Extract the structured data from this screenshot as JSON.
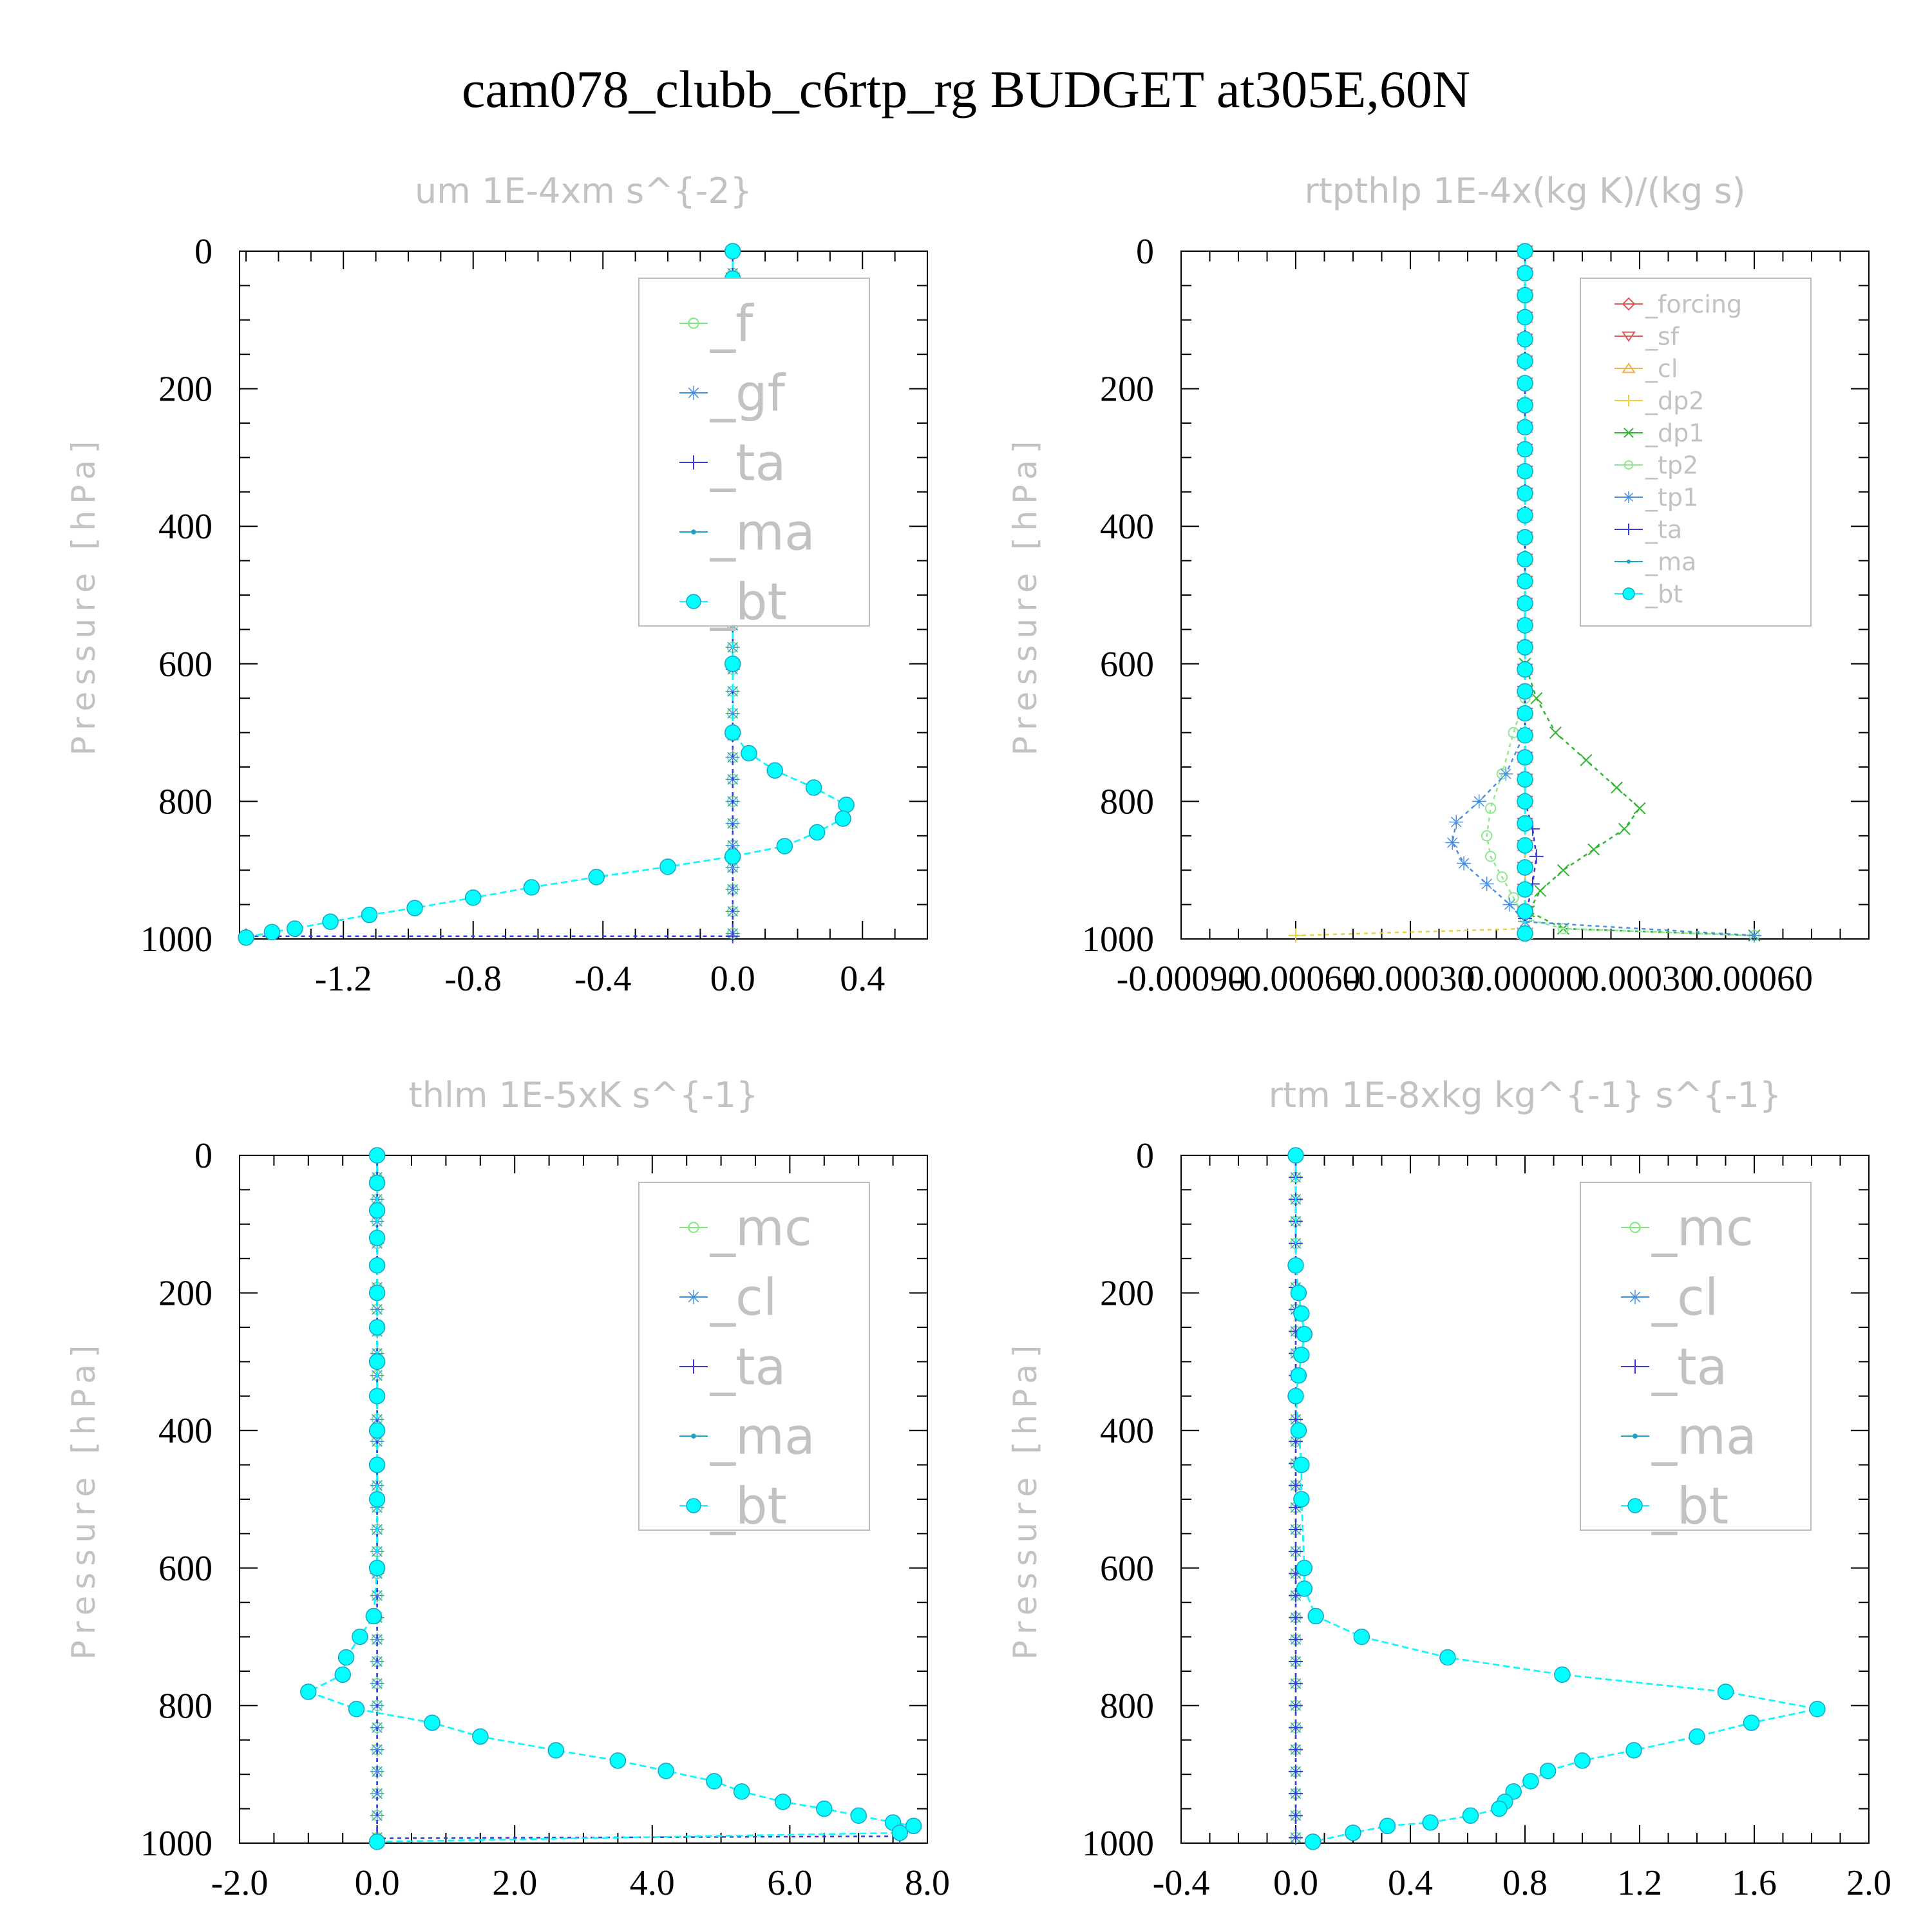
{
  "title": "cam078_clubb_c6rtp_rg  BUDGET at305E,60N",
  "chart_data": [
    {
      "type": "line",
      "title": "um  1E-4xm s^{-2}",
      "ylabel": "Pressure [hPa]",
      "ylim": [
        1000,
        0
      ],
      "xlim": [
        -1.52,
        0.6
      ],
      "xticks": [
        -1.2,
        -0.8,
        -0.4,
        0.0,
        0.4
      ],
      "xtick_labels": [
        "-1.2",
        "-0.8",
        "-0.4",
        "0.0",
        "0.4"
      ],
      "yticks": [
        0,
        200,
        400,
        600,
        800,
        1000
      ],
      "ytick_labels": [
        "0",
        "200",
        "400",
        "600",
        "800",
        "1000"
      ],
      "legend_position": "top-right",
      "legend_size": "large",
      "series": [
        {
          "name": "_f",
          "color": "#7fe77f",
          "marker": "circle-open",
          "x": [
            0,
            0
          ],
          "y": [
            0,
            1000
          ]
        },
        {
          "name": "_gf",
          "color": "#3f8fdf",
          "marker": "star",
          "x": [
            0,
            0
          ],
          "y": [
            0,
            1000
          ]
        },
        {
          "name": "_ta",
          "color": "#3a3ad6",
          "marker": "plus",
          "x": [
            0,
            0,
            -1.5
          ],
          "y": [
            0,
            996,
            996
          ]
        },
        {
          "name": "_ma",
          "color": "#1aa3c6",
          "marker": "dot",
          "x": [
            0,
            0,
            0,
            0,
            0,
            0,
            0,
            0,
            0,
            0,
            0,
            0,
            0,
            0,
            0.05,
            0.13,
            0.25,
            0.35,
            0.34,
            0.26,
            0.16,
            0.0,
            -0.2,
            -0.42,
            -0.62,
            -0.8,
            -0.98,
            -1.12,
            -1.24,
            -1.35,
            -1.42,
            -1.5
          ],
          "y": [
            0,
            40,
            80,
            120,
            160,
            200,
            250,
            300,
            350,
            400,
            450,
            500,
            600,
            700,
            730,
            755,
            780,
            805,
            825,
            845,
            865,
            880,
            895,
            910,
            925,
            940,
            955,
            965,
            975,
            985,
            990,
            998
          ]
        },
        {
          "name": "_bt",
          "color": "#00ffff",
          "marker": "dot-filled",
          "x": [
            0,
            0,
            0,
            0,
            0,
            0,
            0,
            0,
            0,
            0,
            0,
            0,
            0,
            0,
            0.05,
            0.13,
            0.25,
            0.35,
            0.34,
            0.26,
            0.16,
            0.0,
            -0.2,
            -0.42,
            -0.62,
            -0.8,
            -0.98,
            -1.12,
            -1.24,
            -1.35,
            -1.42,
            -1.5
          ],
          "y": [
            0,
            40,
            80,
            120,
            160,
            200,
            250,
            300,
            350,
            400,
            450,
            500,
            600,
            700,
            730,
            755,
            780,
            805,
            825,
            845,
            865,
            880,
            895,
            910,
            925,
            940,
            955,
            965,
            975,
            985,
            990,
            998
          ]
        }
      ]
    },
    {
      "type": "line",
      "title": "rtpthlp  1E-4x(kg K)/(kg s)",
      "ylabel": "Pressure [hPa]",
      "ylim": [
        1000,
        0
      ],
      "xlim": [
        -0.0009,
        0.0009
      ],
      "xticks": [
        -0.0009,
        -0.0006,
        -0.0003,
        0.0,
        0.0003,
        0.0006
      ],
      "xtick_labels": [
        "-0.00090",
        "-0.00060",
        "-0.00030",
        "0.00000",
        "0.00030",
        "0.00060"
      ],
      "yticks": [
        0,
        200,
        400,
        600,
        800,
        1000
      ],
      "ytick_labels": [
        "0",
        "200",
        "400",
        "600",
        "800",
        "1000"
      ],
      "legend_position": "top-right",
      "legend_size": "small",
      "series": [
        {
          "name": "_forcing",
          "color": "#e05a5a",
          "marker": "diamond",
          "x": [
            0,
            0
          ],
          "y": [
            0,
            1000
          ]
        },
        {
          "name": "_sf",
          "color": "#e05a5a",
          "marker": "triangle-down",
          "x": [
            0,
            0
          ],
          "y": [
            0,
            1000
          ]
        },
        {
          "name": "_cl",
          "color": "#f0b050",
          "marker": "triangle-up",
          "x": [
            0,
            0
          ],
          "y": [
            0,
            1000
          ]
        },
        {
          "name": "_dp2",
          "color": "#e8d040",
          "marker": "plus",
          "x": [
            0,
            0,
            0,
            -0.0006
          ],
          "y": [
            0,
            900,
            985,
            995
          ]
        },
        {
          "name": "_dp1",
          "color": "#2fb82f",
          "marker": "x",
          "x": [
            0,
            0,
            3e-05,
            8e-05,
            0.00016,
            0.00024,
            0.0003,
            0.00026,
            0.00018,
            0.0001,
            4e-05,
            1e-05,
            0.0001,
            0.0006
          ],
          "y": [
            0,
            600,
            650,
            700,
            740,
            780,
            810,
            840,
            870,
            900,
            930,
            960,
            985,
            995
          ]
        },
        {
          "name": "_tp2",
          "color": "#8fe88f",
          "marker": "circle-open",
          "x": [
            0,
            0,
            -3e-05,
            -6e-05,
            -9e-05,
            -0.0001,
            -9e-05,
            -6e-05,
            -3e-05,
            0,
            0.0001,
            0.0006
          ],
          "y": [
            0,
            650,
            700,
            760,
            810,
            850,
            880,
            910,
            940,
            970,
            985,
            995
          ]
        },
        {
          "name": "_tp1",
          "color": "#4a8fe0",
          "marker": "star",
          "x": [
            0,
            0,
            -5e-05,
            -0.00012,
            -0.00018,
            -0.00019,
            -0.00016,
            -0.0001,
            -4e-05,
            0,
            0.0006
          ],
          "y": [
            0,
            700,
            760,
            800,
            830,
            860,
            890,
            920,
            950,
            975,
            995
          ]
        },
        {
          "name": "_ta",
          "color": "#3a3ad6",
          "marker": "plus",
          "x": [
            0,
            0,
            2e-05,
            3e-05,
            2e-05,
            0.0
          ],
          "y": [
            0,
            800,
            840,
            880,
            920,
            970
          ]
        },
        {
          "name": "_ma",
          "color": "#1aa3c6",
          "marker": "dot",
          "x": [
            0,
            0
          ],
          "y": [
            0,
            1000
          ]
        },
        {
          "name": "_bt",
          "color": "#00ffff",
          "marker": "dot-filled",
          "x": [
            0,
            0
          ],
          "y": [
            0,
            1000
          ]
        }
      ]
    },
    {
      "type": "line",
      "title": "thlm  1E-5xK s^{-1}",
      "ylabel": "Pressure [hPa]",
      "ylim": [
        1000,
        0
      ],
      "xlim": [
        -2.0,
        8.0
      ],
      "xticks": [
        -2.0,
        0.0,
        2.0,
        4.0,
        6.0,
        8.0
      ],
      "xtick_labels": [
        "-2.0",
        "0.0",
        "2.0",
        "4.0",
        "6.0",
        "8.0"
      ],
      "yticks": [
        0,
        200,
        400,
        600,
        800,
        1000
      ],
      "ytick_labels": [
        "0",
        "200",
        "400",
        "600",
        "800",
        "1000"
      ],
      "legend_position": "top-right",
      "legend_size": "large",
      "series": [
        {
          "name": "_mc",
          "color": "#7fe77f",
          "marker": "circle-open",
          "x": [
            0,
            0
          ],
          "y": [
            0,
            1000
          ]
        },
        {
          "name": "_cl",
          "color": "#3f8fdf",
          "marker": "star",
          "x": [
            0,
            0
          ],
          "y": [
            0,
            1000
          ]
        },
        {
          "name": "_ta",
          "color": "#3a3ad6",
          "marker": "plus",
          "x": [
            0,
            0,
            7.6
          ],
          "y": [
            0,
            993,
            990
          ]
        },
        {
          "name": "_ma",
          "color": "#1aa3c6",
          "marker": "dot",
          "x": [
            0,
            0,
            0,
            0,
            0,
            0,
            0,
            0,
            0,
            0,
            0,
            0,
            0,
            -0.05,
            -0.25,
            -0.45,
            -0.5,
            -1.0,
            -0.3,
            0.8,
            1.5,
            2.6,
            3.5,
            4.2,
            4.9,
            5.3,
            5.9,
            6.5,
            7.0,
            7.5,
            7.8,
            7.6
          ],
          "y": [
            0,
            40,
            80,
            120,
            160,
            200,
            250,
            300,
            350,
            400,
            450,
            500,
            600,
            670,
            700,
            730,
            755,
            780,
            805,
            825,
            845,
            865,
            880,
            895,
            910,
            925,
            940,
            950,
            960,
            970,
            975,
            985
          ]
        },
        {
          "name": "_bt",
          "color": "#00ffff",
          "marker": "dot-filled",
          "x": [
            0,
            0,
            0,
            0,
            0,
            0,
            0,
            0,
            0,
            0,
            0,
            0,
            0,
            -0.05,
            -0.25,
            -0.45,
            -0.5,
            -1.0,
            -0.3,
            0.8,
            1.5,
            2.6,
            3.5,
            4.2,
            4.9,
            5.3,
            5.9,
            6.5,
            7.0,
            7.5,
            7.8,
            7.6,
            0.0
          ],
          "y": [
            0,
            40,
            80,
            120,
            160,
            200,
            250,
            300,
            350,
            400,
            450,
            500,
            600,
            670,
            700,
            730,
            755,
            780,
            805,
            825,
            845,
            865,
            880,
            895,
            910,
            925,
            940,
            950,
            960,
            970,
            975,
            985,
            998
          ]
        }
      ]
    },
    {
      "type": "line",
      "title": "rtm  1E-8xkg kg^{-1} s^{-1}",
      "ylabel": "Pressure [hPa]",
      "ylim": [
        1000,
        0
      ],
      "xlim": [
        -0.4,
        2.0
      ],
      "xticks": [
        -0.4,
        0.0,
        0.4,
        0.8,
        1.2,
        1.6,
        2.0
      ],
      "xtick_labels": [
        "-0.4",
        "0.0",
        "0.4",
        "0.8",
        "1.2",
        "1.6",
        "2.0"
      ],
      "yticks": [
        0,
        200,
        400,
        600,
        800,
        1000
      ],
      "ytick_labels": [
        "0",
        "200",
        "400",
        "600",
        "800",
        "1000"
      ],
      "legend_position": "top-right",
      "legend_size": "large",
      "series": [
        {
          "name": "_mc",
          "color": "#7fe77f",
          "marker": "circle-open",
          "x": [
            0,
            0
          ],
          "y": [
            0,
            1000
          ]
        },
        {
          "name": "_cl",
          "color": "#3f8fdf",
          "marker": "star",
          "x": [
            0,
            0
          ],
          "y": [
            0,
            1000
          ]
        },
        {
          "name": "_ta",
          "color": "#3a3ad6",
          "marker": "plus",
          "x": [
            0,
            0
          ],
          "y": [
            0,
            1000
          ]
        },
        {
          "name": "_ma",
          "color": "#1aa3c6",
          "marker": "dot",
          "x": [
            0,
            0,
            0.01,
            0.02,
            0.03,
            0.02,
            0.01,
            0.0,
            0.01,
            0.02,
            0.02,
            0.03,
            0.03,
            0.07,
            0.23,
            0.53,
            0.93,
            1.5,
            1.82,
            1.59,
            1.4,
            1.18,
            1.0,
            0.88,
            0.82,
            0.76,
            0.73,
            0.71,
            0.61,
            0.47,
            0.32,
            0.2,
            0.06
          ],
          "y": [
            0,
            160,
            200,
            230,
            260,
            290,
            320,
            350,
            400,
            450,
            500,
            600,
            630,
            670,
            700,
            730,
            755,
            780,
            805,
            825,
            845,
            865,
            880,
            895,
            910,
            925,
            940,
            950,
            960,
            970,
            975,
            985,
            998
          ]
        },
        {
          "name": "_bt",
          "color": "#00ffff",
          "marker": "dot-filled",
          "x": [
            0,
            0,
            0.01,
            0.02,
            0.03,
            0.02,
            0.01,
            0.0,
            0.01,
            0.02,
            0.02,
            0.03,
            0.03,
            0.07,
            0.23,
            0.53,
            0.93,
            1.5,
            1.82,
            1.59,
            1.4,
            1.18,
            1.0,
            0.88,
            0.82,
            0.76,
            0.73,
            0.71,
            0.61,
            0.47,
            0.32,
            0.2,
            0.06
          ],
          "y": [
            0,
            160,
            200,
            230,
            260,
            290,
            320,
            350,
            400,
            450,
            500,
            600,
            630,
            670,
            700,
            730,
            755,
            780,
            805,
            825,
            845,
            865,
            880,
            895,
            910,
            925,
            940,
            950,
            960,
            970,
            975,
            985,
            998
          ]
        }
      ]
    }
  ]
}
